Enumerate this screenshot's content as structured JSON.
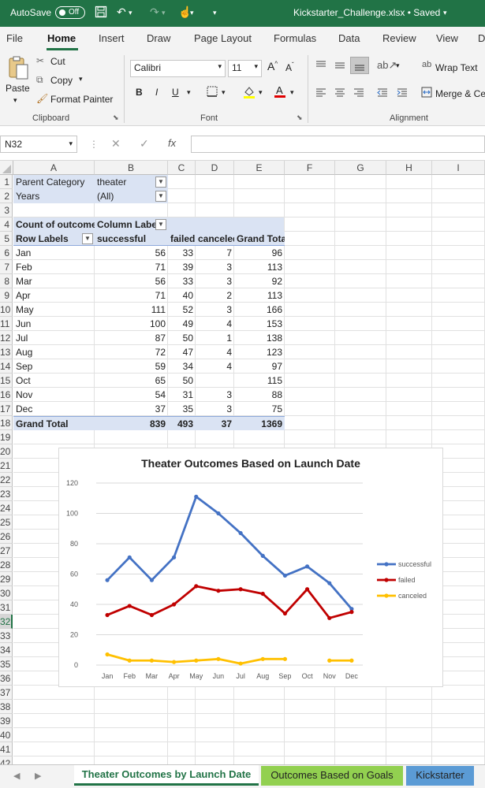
{
  "titlebar": {
    "autosave_label": "AutoSave",
    "autosave_state": "Off",
    "filename": "Kickstarter_Challenge.xlsx • Saved"
  },
  "tabs": [
    "File",
    "Home",
    "Insert",
    "Draw",
    "Page Layout",
    "Formulas",
    "Data",
    "Review",
    "View",
    "D"
  ],
  "ribbon": {
    "paste": "Paste",
    "cut": "Cut",
    "copy": "Copy",
    "format_painter": "Format Painter",
    "clipboard_group": "Clipboard",
    "font_name": "Calibri",
    "font_size": "11",
    "font_group": "Font",
    "wrap_text": "Wrap Text",
    "merge_center": "Merge & Ce",
    "alignment_group": "Alignment"
  },
  "formula_bar": {
    "name_box": "N32",
    "formula": ""
  },
  "columns": [
    "A",
    "B",
    "C",
    "D",
    "E",
    "F",
    "G",
    "H",
    "I"
  ],
  "selected_row": "32",
  "pivot": {
    "filter1_label": "Parent Category",
    "filter1_value": "theater",
    "filter2_label": "Years",
    "filter2_value": "(All)",
    "values_label": "Count of outcomes",
    "column_labels": "Column Labels",
    "row_labels": "Row Labels",
    "headers": [
      "successful",
      "failed",
      "canceled",
      "Grand Total"
    ],
    "rows": [
      {
        "month": "Jan",
        "successful": "56",
        "failed": "33",
        "canceled": "7",
        "total": "96"
      },
      {
        "month": "Feb",
        "successful": "71",
        "failed": "39",
        "canceled": "3",
        "total": "113"
      },
      {
        "month": "Mar",
        "successful": "56",
        "failed": "33",
        "canceled": "3",
        "total": "92"
      },
      {
        "month": "Apr",
        "successful": "71",
        "failed": "40",
        "canceled": "2",
        "total": "113"
      },
      {
        "month": "May",
        "successful": "111",
        "failed": "52",
        "canceled": "3",
        "total": "166"
      },
      {
        "month": "Jun",
        "successful": "100",
        "failed": "49",
        "canceled": "4",
        "total": "153"
      },
      {
        "month": "Jul",
        "successful": "87",
        "failed": "50",
        "canceled": "1",
        "total": "138"
      },
      {
        "month": "Aug",
        "successful": "72",
        "failed": "47",
        "canceled": "4",
        "total": "123"
      },
      {
        "month": "Sep",
        "successful": "59",
        "failed": "34",
        "canceled": "4",
        "total": "97"
      },
      {
        "month": "Oct",
        "successful": "65",
        "failed": "50",
        "canceled": "",
        "total": "115"
      },
      {
        "month": "Nov",
        "successful": "54",
        "failed": "31",
        "canceled": "3",
        "total": "88"
      },
      {
        "month": "Dec",
        "successful": "37",
        "failed": "35",
        "canceled": "3",
        "total": "75"
      }
    ],
    "grand_total": {
      "label": "Grand Total",
      "successful": "839",
      "failed": "493",
      "canceled": "37",
      "total": "1369"
    }
  },
  "chart_data": {
    "type": "line",
    "title": "Theater Outcomes Based on Launch Date",
    "categories": [
      "Jan",
      "Feb",
      "Mar",
      "Apr",
      "May",
      "Jun",
      "Jul",
      "Aug",
      "Sep",
      "Oct",
      "Nov",
      "Dec"
    ],
    "series": [
      {
        "name": "successful",
        "color": "#4472c4",
        "values": [
          56,
          71,
          56,
          71,
          111,
          100,
          87,
          72,
          59,
          65,
          54,
          37
        ]
      },
      {
        "name": "failed",
        "color": "#c00000",
        "values": [
          33,
          39,
          33,
          40,
          52,
          49,
          50,
          47,
          34,
          50,
          31,
          35
        ]
      },
      {
        "name": "canceled",
        "color": "#ffc000",
        "values": [
          7,
          3,
          3,
          2,
          3,
          4,
          1,
          4,
          4,
          null,
          3,
          3
        ]
      }
    ],
    "yticks": [
      "0",
      "20",
      "40",
      "60",
      "80",
      "100",
      "120"
    ],
    "ylim": [
      0,
      120
    ],
    "grid": true,
    "legend": "right"
  },
  "sheet_tabs": [
    {
      "label": "Theater Outcomes by Launch Date",
      "active": true
    },
    {
      "label": "Outcomes Based on Goals",
      "active": false
    },
    {
      "label": "Kickstarter",
      "active": false
    }
  ]
}
